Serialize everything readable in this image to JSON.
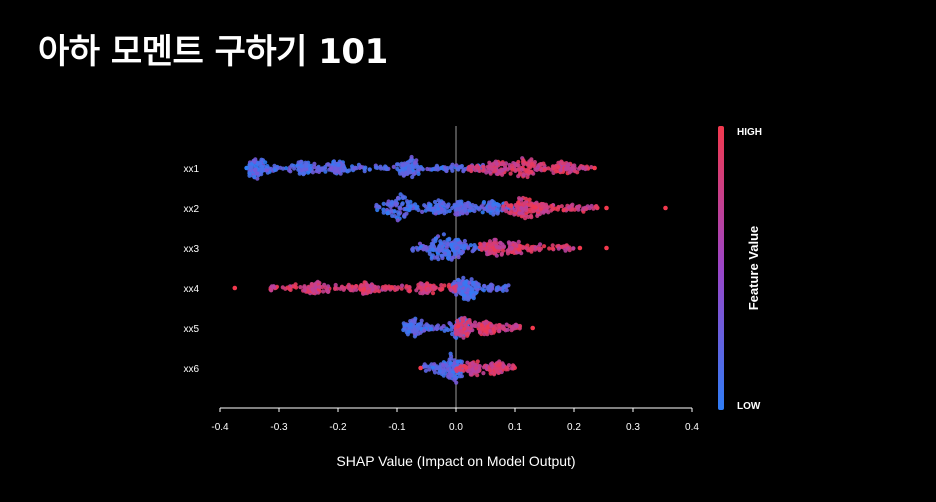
{
  "slide": {
    "title": "아하 모멘트 구하기 101"
  },
  "colors": {
    "background": "#000000",
    "low": "#2f7df6",
    "high": "#f2394e",
    "mid": "#9b45c8",
    "axis": "#ffffff"
  },
  "chart_data": {
    "type": "scatter",
    "subtype": "shap-beeswarm",
    "xlabel": "SHAP Value (Impact on Model Output)",
    "xlim": [
      -0.4,
      0.4
    ],
    "xticks": [
      -0.4,
      -0.3,
      -0.2,
      -0.1,
      0.0,
      0.1,
      0.2,
      0.3,
      0.4
    ],
    "xtick_labels": [
      "-0.4",
      "-0.3",
      "-0.2",
      "-0.1",
      "0.0",
      "0.1",
      "0.2",
      "0.3",
      "0.4"
    ],
    "zero_line": true,
    "colorbar": {
      "title": "Feature Value",
      "high_label": "HIGH",
      "low_label": "LOW"
    },
    "features": [
      {
        "name": "xx1",
        "low": {
          "range": [
            -0.35,
            0.05
          ],
          "clusters": [
            [
              -0.34,
              0.7
            ],
            [
              -0.26,
              0.4
            ],
            [
              -0.2,
              0.35
            ],
            [
              -0.08,
              0.8
            ]
          ]
        },
        "high": {
          "range": [
            0.02,
            0.23
          ],
          "clusters": [
            [
              0.12,
              1.0
            ],
            [
              0.07,
              0.4
            ],
            [
              0.18,
              0.35
            ]
          ]
        },
        "outliers": [
          [
            -0.355,
            0.0
          ],
          [
            0.235,
            1.0
          ]
        ]
      },
      {
        "name": "xx2",
        "low": {
          "range": [
            -0.14,
            0.1
          ],
          "clusters": [
            [
              -0.1,
              1.0
            ],
            [
              -0.03,
              0.45
            ],
            [
              0.01,
              0.4
            ],
            [
              0.06,
              0.35
            ]
          ]
        },
        "high": {
          "range": [
            0.08,
            0.24
          ],
          "clusters": [
            [
              0.11,
              0.55
            ],
            [
              0.14,
              0.4
            ]
          ]
        },
        "outliers": [
          [
            0.255,
            1.0
          ],
          [
            0.355,
            1.0
          ]
        ]
      },
      {
        "name": "xx3",
        "low": {
          "range": [
            -0.075,
            0.06
          ],
          "clusters": [
            [
              -0.03,
              1.0
            ],
            [
              0.0,
              0.6
            ]
          ]
        },
        "high": {
          "range": [
            0.04,
            0.2
          ],
          "clusters": [
            [
              0.06,
              0.5
            ],
            [
              0.1,
              0.3
            ]
          ]
        },
        "outliers": [
          [
            0.21,
            1.0
          ],
          [
            0.255,
            1.0
          ]
        ]
      },
      {
        "name": "xx4",
        "low": {
          "range": [
            -0.01,
            0.09
          ],
          "clusters": [
            [
              0.02,
              1.0
            ]
          ]
        },
        "high": {
          "range": [
            -0.32,
            0.0
          ],
          "clusters": [
            [
              -0.24,
              0.25
            ],
            [
              -0.15,
              0.3
            ],
            [
              -0.05,
              0.25
            ]
          ]
        },
        "outliers": [
          [
            -0.375,
            1.0
          ]
        ]
      },
      {
        "name": "xx5",
        "low": {
          "range": [
            -0.09,
            0.02
          ],
          "clusters": [
            [
              -0.07,
              0.55
            ],
            [
              0.01,
              0.9
            ]
          ]
        },
        "high": {
          "range": [
            0.0,
            0.11
          ],
          "clusters": [
            [
              0.01,
              0.6
            ],
            [
              0.05,
              0.3
            ]
          ]
        },
        "outliers": [
          [
            0.13,
            1.0
          ]
        ]
      },
      {
        "name": "xx6",
        "low": {
          "range": [
            -0.055,
            0.01
          ],
          "clusters": [
            [
              -0.005,
              1.0
            ]
          ]
        },
        "high": {
          "range": [
            0.0,
            0.1
          ],
          "clusters": [
            [
              0.03,
              0.35
            ],
            [
              0.07,
              0.3
            ]
          ]
        },
        "outliers": [
          [
            -0.06,
            1.0
          ]
        ]
      }
    ]
  }
}
